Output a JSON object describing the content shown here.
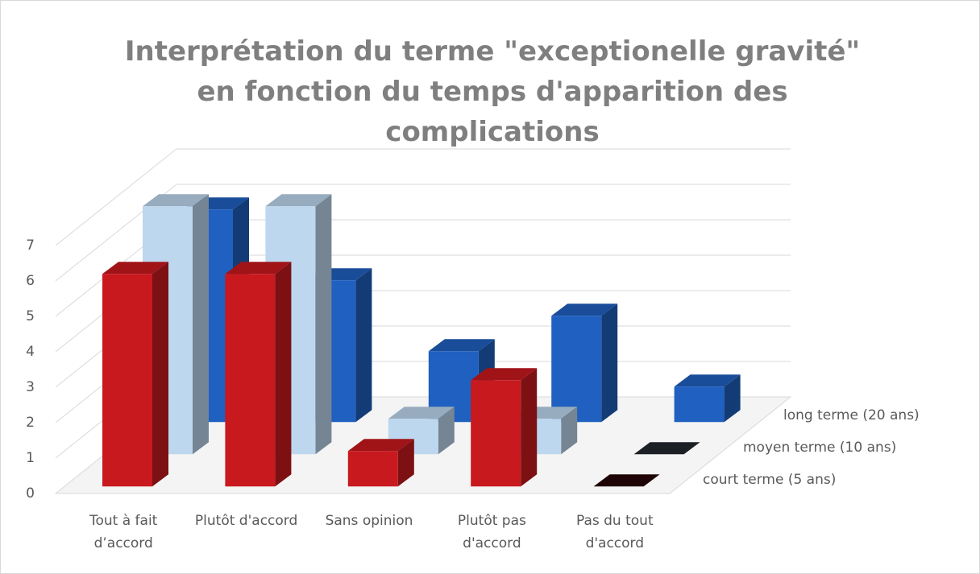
{
  "chart_data": {
    "type": "bar3d",
    "title": "Interprétation du terme \"exceptionelle gravité\" en fonction du temps d'apparition des complications",
    "categories": [
      "Tout à fait d’accord",
      "Plutôt d'accord",
      "Sans opinion",
      "Plutôt pas d'accord",
      "Pas du tout d'accord"
    ],
    "series": [
      {
        "name": "court terme (5 ans)",
        "color": "#c8191e",
        "values": [
          6,
          6,
          1,
          3,
          0
        ]
      },
      {
        "name": "moyen terme (10 ans)",
        "color": "#bdd7ee",
        "values": [
          7,
          7,
          1,
          1,
          0
        ]
      },
      {
        "name": "long terme (20 ans)",
        "color": "#1f60c0",
        "values": [
          6,
          4,
          2,
          3,
          1
        ]
      }
    ],
    "ylim": [
      0,
      8
    ],
    "yticks": [
      0,
      1,
      2,
      3,
      4,
      5,
      6,
      7
    ],
    "grid": true
  }
}
